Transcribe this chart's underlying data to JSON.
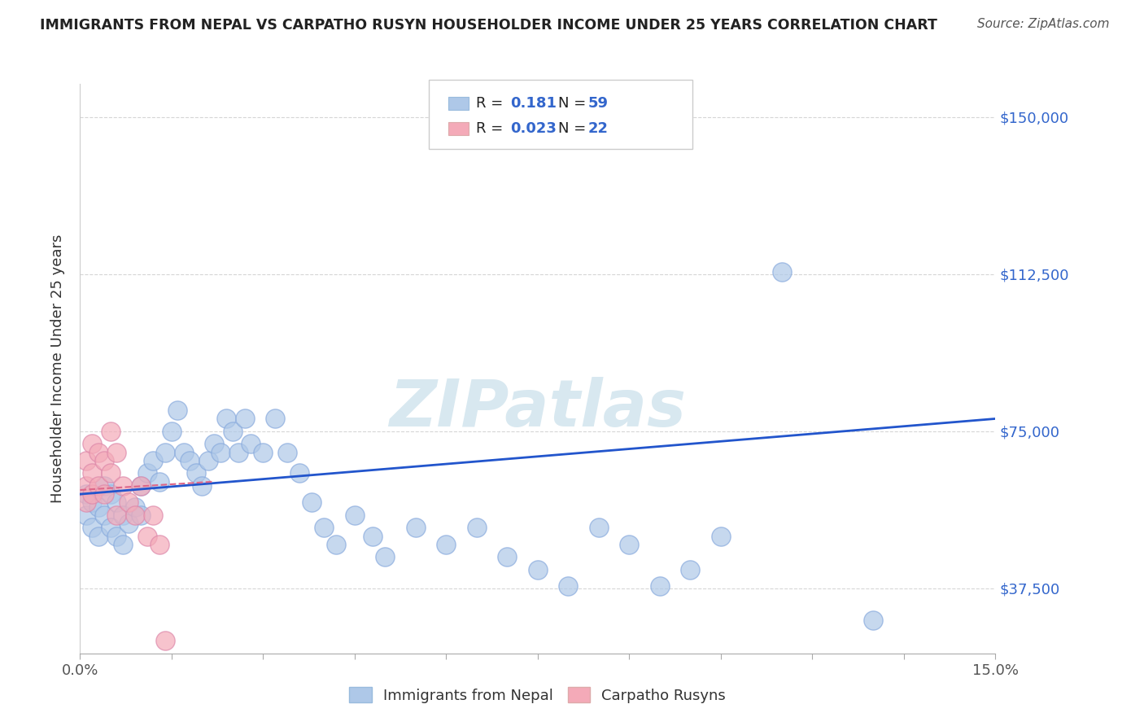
{
  "title": "IMMIGRANTS FROM NEPAL VS CARPATHO RUSYN HOUSEHOLDER INCOME UNDER 25 YEARS CORRELATION CHART",
  "source": "Source: ZipAtlas.com",
  "ylabel": "Householder Income Under 25 years",
  "blue_R": "0.181",
  "blue_N": "59",
  "pink_R": "0.023",
  "pink_N": "22",
  "blue_color": "#aec8e8",
  "pink_color": "#f4aab8",
  "line_blue": "#2255cc",
  "line_pink": "#dd6688",
  "watermark_text": "ZIPatlas",
  "nepal_x": [
    0.001,
    0.001,
    0.002,
    0.002,
    0.003,
    0.003,
    0.004,
    0.004,
    0.005,
    0.005,
    0.006,
    0.006,
    0.007,
    0.007,
    0.008,
    0.009,
    0.01,
    0.01,
    0.011,
    0.012,
    0.013,
    0.014,
    0.015,
    0.016,
    0.017,
    0.018,
    0.019,
    0.02,
    0.021,
    0.022,
    0.023,
    0.024,
    0.025,
    0.026,
    0.027,
    0.028,
    0.03,
    0.032,
    0.034,
    0.036,
    0.038,
    0.04,
    0.042,
    0.045,
    0.048,
    0.05,
    0.055,
    0.06,
    0.065,
    0.07,
    0.075,
    0.08,
    0.085,
    0.09,
    0.095,
    0.1,
    0.105,
    0.115,
    0.13
  ],
  "nepal_y": [
    60000,
    55000,
    58000,
    52000,
    57000,
    50000,
    62000,
    55000,
    60000,
    52000,
    58000,
    50000,
    55000,
    48000,
    53000,
    57000,
    62000,
    55000,
    65000,
    68000,
    63000,
    70000,
    75000,
    80000,
    70000,
    68000,
    65000,
    62000,
    68000,
    72000,
    70000,
    78000,
    75000,
    70000,
    78000,
    72000,
    70000,
    78000,
    70000,
    65000,
    58000,
    52000,
    48000,
    55000,
    50000,
    45000,
    52000,
    48000,
    52000,
    45000,
    42000,
    38000,
    52000,
    48000,
    38000,
    42000,
    50000,
    113000,
    30000
  ],
  "rusyn_x": [
    0.001,
    0.001,
    0.001,
    0.002,
    0.002,
    0.002,
    0.003,
    0.003,
    0.004,
    0.004,
    0.005,
    0.005,
    0.006,
    0.006,
    0.007,
    0.008,
    0.009,
    0.01,
    0.011,
    0.012,
    0.013,
    0.014
  ],
  "rusyn_y": [
    62000,
    68000,
    58000,
    65000,
    72000,
    60000,
    70000,
    62000,
    68000,
    60000,
    75000,
    65000,
    70000,
    55000,
    62000,
    58000,
    55000,
    62000,
    50000,
    55000,
    48000,
    25000
  ],
  "xlim": [
    0.0,
    0.15
  ],
  "ylim": [
    22000,
    158000
  ],
  "yticks": [
    37500,
    75000,
    112500,
    150000
  ],
  "yticklabels": [
    "$37,500",
    "$75,000",
    "$112,500",
    "$150,000"
  ],
  "blue_line_x0": 0.0,
  "blue_line_y0": 60000,
  "blue_line_x1": 0.15,
  "blue_line_y1": 78000,
  "pink_line_x0": 0.0,
  "pink_line_y0": 61000,
  "pink_line_x1": 0.022,
  "pink_line_y1": 63000
}
